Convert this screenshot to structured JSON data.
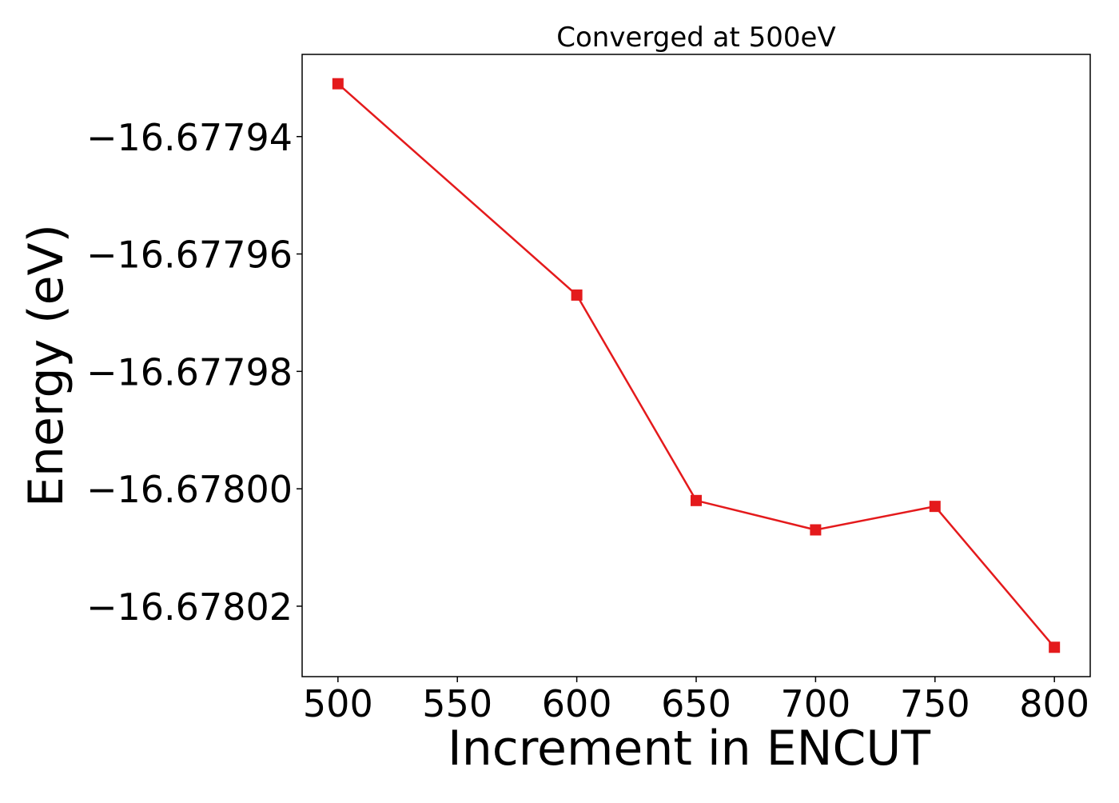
{
  "chart_data": {
    "type": "line",
    "title": "Converged at 500eV",
    "xlabel": "Increment in ENCUT",
    "ylabel": "Energy (eV)",
    "x": [
      500,
      600,
      650,
      700,
      750,
      800
    ],
    "series": [
      {
        "name": "",
        "values": [
          -16.677931,
          -16.677967,
          -16.678002,
          -16.678007,
          -16.678003,
          -16.678027
        ],
        "color": "#e41a1c",
        "marker": "square"
      }
    ],
    "xlim": [
      485,
      815
    ],
    "ylim": [
      -16.678032,
      -16.677926
    ],
    "xticks": [
      500,
      550,
      600,
      650,
      700,
      750,
      800
    ],
    "xtick_labels": [
      "500",
      "550",
      "600",
      "650",
      "700",
      "750",
      "800"
    ],
    "yticks": [
      -16.67794,
      -16.67796,
      -16.67798,
      -16.678,
      -16.67802
    ],
    "ytick_labels": [
      "−16.67794",
      "−16.67796",
      "−16.67798",
      "−16.67800",
      "−16.67802"
    ],
    "grid": false,
    "legend": false
  }
}
